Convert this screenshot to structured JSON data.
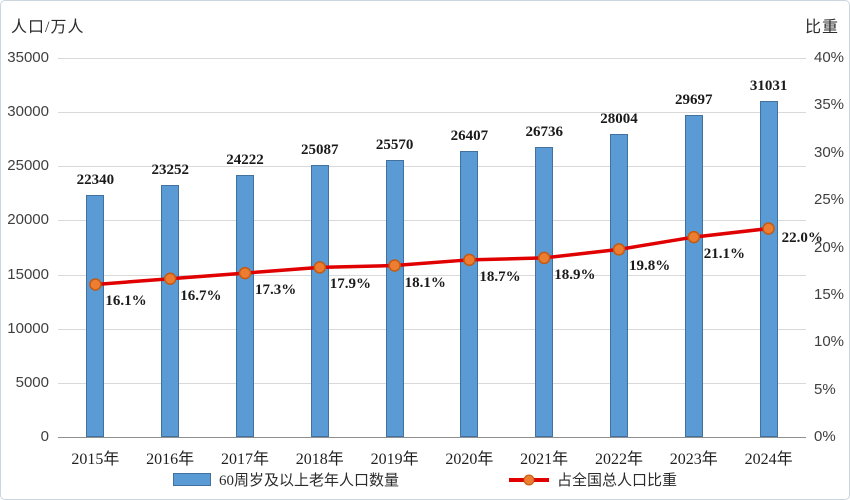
{
  "chart_data": {
    "type": "combo",
    "categories": [
      "2015年",
      "2016年",
      "2017年",
      "2018年",
      "2019年",
      "2020年",
      "2021年",
      "2022年",
      "2023年",
      "2024年"
    ],
    "series": [
      {
        "name": "60周岁及以上老年人口数量",
        "type": "bar",
        "axis": "left",
        "values": [
          22340,
          23252,
          24222,
          25087,
          25570,
          26407,
          26736,
          28004,
          29697,
          31031
        ],
        "data_labels": [
          "22340",
          "23252",
          "24222",
          "25087",
          "25570",
          "26407",
          "26736",
          "28004",
          "29697",
          "31031"
        ],
        "fill_color": "#5B9BD5",
        "border_color": "#41719C"
      },
      {
        "name": "占全国总人口比重",
        "type": "line",
        "axis": "right",
        "values": [
          16.1,
          16.7,
          17.3,
          17.9,
          18.1,
          18.7,
          18.9,
          19.8,
          21.1,
          22.0
        ],
        "data_labels": [
          "16.1%",
          "16.7%",
          "17.3%",
          "17.9%",
          "18.1%",
          "18.7%",
          "18.9%",
          "19.8%",
          "21.1%",
          "22.0%"
        ],
        "line_color": "#E00000",
        "marker_fill": "#ED7D31",
        "marker_stroke": "#C55A11"
      }
    ],
    "left_axis": {
      "title": "人口/万人",
      "min": 0,
      "max": 35000,
      "step": 5000,
      "ticks": [
        "0",
        "5000",
        "10000",
        "15000",
        "20000",
        "25000",
        "30000",
        "35000"
      ]
    },
    "right_axis": {
      "title": "比重",
      "min": 0,
      "max": 40,
      "step": 5,
      "ticks": [
        "0%",
        "5%",
        "10%",
        "15%",
        "20%",
        "25%",
        "30%",
        "35%",
        "40%"
      ]
    },
    "grid": "horizontal-only",
    "legend_position": "bottom",
    "gridline_color": "#d9d9d9",
    "axis_line_color": "#8f8f8f"
  }
}
